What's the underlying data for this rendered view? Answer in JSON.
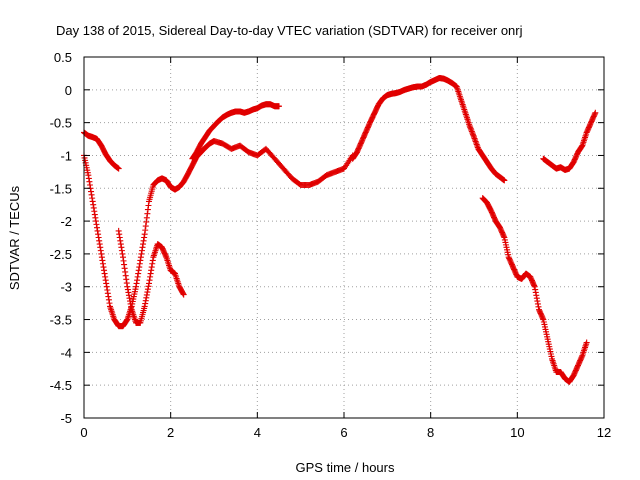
{
  "chart_data": {
    "type": "scatter",
    "title": "Day 138 of 2015, Sidereal Day-to-day VTEC variation (SDTVAR) for receiver onrj",
    "xlabel": "GPS time / hours",
    "ylabel": "SDTVAR / TECUs",
    "xlim": [
      0,
      12
    ],
    "ylim": [
      -5,
      0.5
    ],
    "xticks": [
      0,
      2,
      4,
      6,
      8,
      10,
      12
    ],
    "yticks": [
      0.5,
      0,
      -0.5,
      -1,
      -1.5,
      -2,
      -2.5,
      -3,
      -3.5,
      -4,
      -4.5,
      -5
    ],
    "grid": true,
    "marker": "plus",
    "marker_color": "#e00000",
    "series": [
      {
        "x": [
          0.0,
          0.1,
          0.2,
          0.3,
          0.4,
          0.5,
          0.6,
          0.7,
          0.8
        ],
        "y": [
          -0.65,
          -0.7,
          -0.72,
          -0.75,
          -0.85,
          -0.98,
          -1.08,
          -1.15,
          -1.2
        ]
      },
      {
        "x": [
          0.0,
          0.1,
          0.2,
          0.3,
          0.4,
          0.5,
          0.6,
          0.7,
          0.8,
          0.9,
          1.0,
          1.1,
          1.2,
          1.3,
          1.4,
          1.5,
          1.6,
          1.7,
          1.8,
          1.9,
          2.0,
          2.1,
          2.2,
          2.3,
          2.4,
          2.5,
          2.6,
          2.7,
          2.8,
          2.9,
          3.0,
          3.2,
          3.4,
          3.6,
          3.8,
          4.0,
          4.2,
          4.4,
          4.6,
          4.8,
          5.0,
          5.2,
          5.4,
          5.6,
          5.8,
          6.0,
          6.2
        ],
        "y": [
          -1.0,
          -1.3,
          -1.7,
          -2.1,
          -2.5,
          -2.9,
          -3.3,
          -3.5,
          -3.6,
          -3.6,
          -3.5,
          -3.3,
          -3.0,
          -2.6,
          -2.2,
          -1.7,
          -1.45,
          -1.38,
          -1.35,
          -1.38,
          -1.48,
          -1.52,
          -1.48,
          -1.4,
          -1.28,
          -1.15,
          -1.02,
          -0.95,
          -0.88,
          -0.82,
          -0.78,
          -0.82,
          -0.9,
          -0.85,
          -0.95,
          -1.0,
          -0.9,
          -1.05,
          -1.2,
          -1.35,
          -1.45,
          -1.45,
          -1.4,
          -1.3,
          -1.25,
          -1.2,
          -1.0
        ]
      },
      {
        "x": [
          0.8,
          0.9,
          1.0,
          1.1,
          1.2,
          1.3,
          1.4,
          1.5,
          1.6,
          1.7,
          1.8,
          1.9,
          2.0,
          2.1,
          2.2,
          2.3
        ],
        "y": [
          -2.15,
          -2.55,
          -3.0,
          -3.35,
          -3.55,
          -3.55,
          -3.3,
          -2.95,
          -2.55,
          -2.35,
          -2.4,
          -2.55,
          -2.75,
          -2.8,
          -3.0,
          -3.12
        ]
      },
      {
        "x": [
          2.5,
          2.6,
          2.7,
          2.8,
          2.9,
          3.0,
          3.1,
          3.2,
          3.3,
          3.4,
          3.5,
          3.6,
          3.7,
          3.8,
          3.9,
          4.0,
          4.1,
          4.2,
          4.3,
          4.4,
          4.5
        ],
        "y": [
          -1.05,
          -0.95,
          -0.82,
          -0.72,
          -0.62,
          -0.55,
          -0.48,
          -0.42,
          -0.38,
          -0.35,
          -0.33,
          -0.33,
          -0.35,
          -0.33,
          -0.3,
          -0.28,
          -0.24,
          -0.22,
          -0.22,
          -0.25,
          -0.25
        ]
      },
      {
        "x": [
          6.2,
          6.3,
          6.4,
          6.5,
          6.6,
          6.7,
          6.8,
          6.9,
          7.0,
          7.1,
          7.2,
          7.3,
          7.4,
          7.5,
          7.6,
          7.7,
          7.8,
          7.9,
          8.0,
          8.1,
          8.2,
          8.3,
          8.4,
          8.5,
          8.6,
          8.7,
          8.8,
          8.9,
          9.0,
          9.1,
          9.2,
          9.3,
          9.4,
          9.5,
          9.6,
          9.7
        ],
        "y": [
          -1.05,
          -0.95,
          -0.8,
          -0.65,
          -0.5,
          -0.36,
          -0.22,
          -0.13,
          -0.08,
          -0.06,
          -0.05,
          -0.03,
          0.0,
          0.02,
          0.04,
          0.05,
          0.05,
          0.08,
          0.12,
          0.15,
          0.18,
          0.17,
          0.14,
          0.1,
          0.05,
          -0.15,
          -0.35,
          -0.55,
          -0.72,
          -0.9,
          -1.0,
          -1.1,
          -1.2,
          -1.28,
          -1.33,
          -1.38
        ]
      },
      {
        "x": [
          9.2,
          9.3,
          9.4,
          9.5,
          9.6,
          9.7,
          9.8,
          9.9,
          10.0,
          10.1,
          10.2,
          10.3,
          10.4,
          10.5,
          10.6,
          10.7,
          10.8,
          10.9,
          11.0,
          11.1,
          11.2,
          11.3,
          11.4,
          11.5,
          11.6
        ],
        "y": [
          -1.65,
          -1.72,
          -1.85,
          -2.0,
          -2.1,
          -2.25,
          -2.55,
          -2.7,
          -2.85,
          -2.88,
          -2.8,
          -2.85,
          -3.0,
          -3.35,
          -3.5,
          -3.8,
          -4.1,
          -4.3,
          -4.3,
          -4.4,
          -4.45,
          -4.35,
          -4.2,
          -4.05,
          -3.85
        ]
      },
      {
        "x": [
          10.6,
          10.7,
          10.8,
          10.9,
          11.0,
          11.1,
          11.2,
          11.3,
          11.4,
          11.5,
          11.6,
          11.7,
          11.8
        ],
        "y": [
          -1.05,
          -1.1,
          -1.15,
          -1.2,
          -1.18,
          -1.22,
          -1.2,
          -1.1,
          -0.95,
          -0.85,
          -0.65,
          -0.5,
          -0.35
        ]
      }
    ]
  }
}
